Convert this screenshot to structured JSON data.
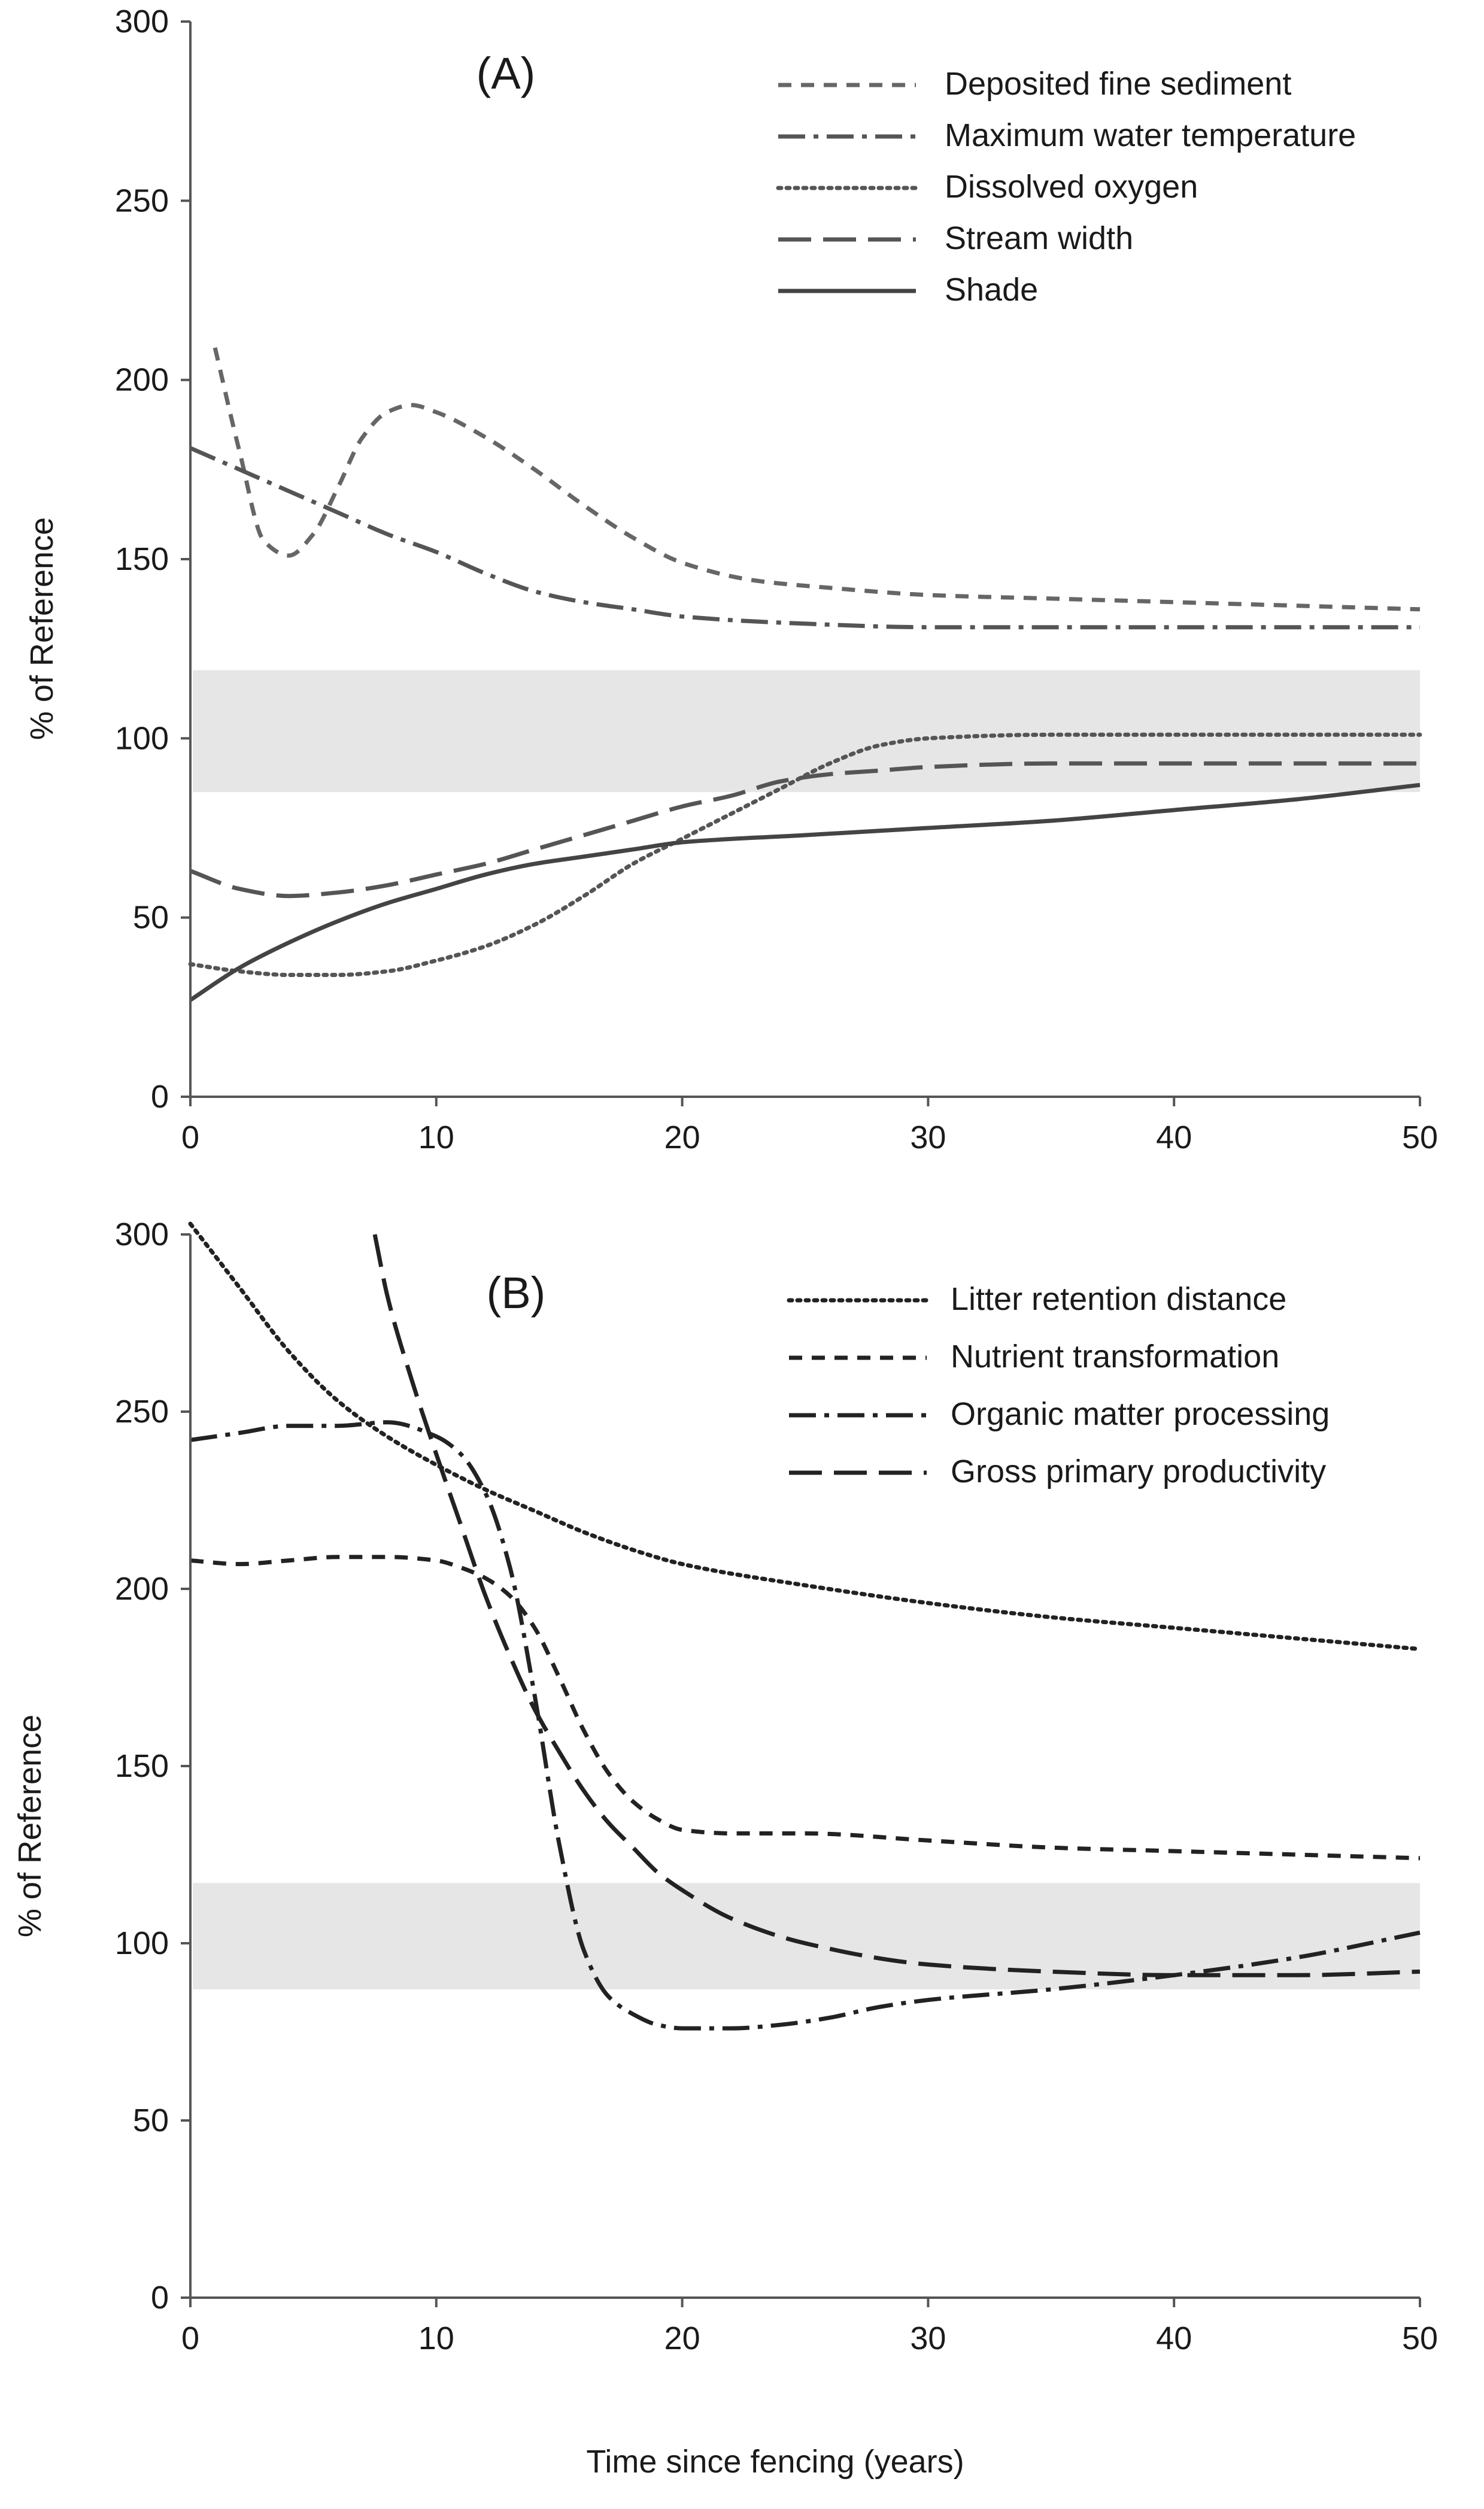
{
  "x_axis_label": "Time since fencing (years)",
  "chart_data": [
    {
      "type": "line",
      "panel_label": "(A)",
      "ylabel": "% of Reference",
      "xlim": [
        0,
        50
      ],
      "ylim": [
        0,
        300
      ],
      "xticks": [
        0,
        10,
        20,
        30,
        40,
        50
      ],
      "yticks": [
        0,
        50,
        100,
        150,
        200,
        250,
        300
      ],
      "grid": false,
      "legend_position": "top-right",
      "reference_band": {
        "y_low": 85,
        "y_high": 119
      },
      "series": [
        {
          "name": "Deposited fine sediment",
          "dash": "short-dash",
          "color": "#666666",
          "x": [
            1,
            2,
            3,
            4,
            5,
            6,
            7,
            8,
            9,
            10,
            12,
            14,
            16,
            18,
            20,
            23,
            26,
            30,
            35,
            40,
            45,
            50
          ],
          "y": [
            209,
            180,
            155,
            151,
            157,
            170,
            184,
            191,
            193,
            191,
            184,
            175,
            165,
            156,
            149,
            144,
            142,
            140,
            139,
            138,
            137,
            136
          ]
        },
        {
          "name": "Maximum water temperature",
          "dash": "dash-dot",
          "color": "#555555",
          "x": [
            0,
            2,
            4,
            6,
            8,
            10,
            12,
            14,
            16,
            18,
            20,
            25,
            30,
            35,
            40,
            45,
            50
          ],
          "y": [
            181,
            175,
            169,
            163,
            157,
            152,
            146,
            141,
            138,
            136,
            134,
            132,
            131,
            131,
            131,
            131,
            131
          ]
        },
        {
          "name": "Dissolved oxygen",
          "dash": "dotted",
          "color": "#555555",
          "x": [
            0,
            2,
            4,
            6,
            8,
            10,
            12,
            14,
            16,
            18,
            20,
            22,
            24,
            26,
            28,
            30,
            35,
            40,
            45,
            50
          ],
          "y": [
            37,
            35,
            34,
            34,
            35,
            38,
            42,
            48,
            56,
            65,
            72,
            79,
            86,
            93,
            98,
            100,
            101,
            101,
            101,
            101
          ]
        },
        {
          "name": "Stream width",
          "dash": "long-dash",
          "color": "#555555",
          "x": [
            0,
            2,
            4,
            6,
            8,
            10,
            12,
            14,
            16,
            18,
            20,
            22,
            24,
            26,
            28,
            30,
            35,
            40,
            45,
            50
          ],
          "y": [
            63,
            58,
            56,
            57,
            59,
            62,
            65,
            69,
            73,
            77,
            81,
            84,
            88,
            90,
            91,
            92,
            93,
            93,
            93,
            93
          ]
        },
        {
          "name": "Shade",
          "dash": "solid",
          "color": "#444444",
          "x": [
            0,
            2,
            4,
            6,
            8,
            10,
            12,
            14,
            16,
            18,
            20,
            25,
            30,
            35,
            40,
            45,
            50
          ],
          "y": [
            27,
            36,
            43,
            49,
            54,
            58,
            62,
            65,
            67,
            69,
            71,
            73,
            75,
            77,
            80,
            83,
            87
          ]
        }
      ]
    },
    {
      "type": "line",
      "panel_label": "(B)",
      "ylabel": "% of Reference",
      "xlim": [
        0,
        50
      ],
      "ylim": [
        0,
        300
      ],
      "xticks": [
        0,
        10,
        20,
        30,
        40,
        50
      ],
      "yticks": [
        0,
        50,
        100,
        150,
        200,
        250,
        300
      ],
      "grid": false,
      "legend_position": "top-right",
      "reference_band": {
        "y_low": 87,
        "y_high": 117
      },
      "series": [
        {
          "name": "Litter retention distance",
          "dash": "dotted",
          "color": "#222222",
          "x": [
            0,
            2,
            4,
            6,
            8,
            10,
            12,
            14,
            16,
            18,
            20,
            25,
            30,
            35,
            40,
            45,
            50
          ],
          "y": [
            303,
            285,
            267,
            253,
            243,
            235,
            228,
            222,
            216,
            211,
            207,
            201,
            196,
            192,
            189,
            186,
            183
          ]
        },
        {
          "name": "Nutrient transformation",
          "dash": "short-dash",
          "color": "#222222",
          "x": [
            0,
            2,
            4,
            6,
            8,
            10,
            11,
            12,
            13,
            14,
            15,
            16,
            17,
            18,
            19,
            20,
            22,
            25,
            30,
            35,
            40,
            45,
            50
          ],
          "y": [
            208,
            207,
            208,
            209,
            209,
            208,
            206,
            203,
            198,
            189,
            175,
            160,
            148,
            140,
            135,
            132,
            131,
            131,
            129,
            127,
            126,
            125,
            124
          ]
        },
        {
          "name": "Organic matter processing",
          "dash": "dash-dot",
          "color": "#222222",
          "x": [
            0,
            2,
            4,
            6,
            8,
            10,
            11,
            12,
            13,
            14,
            15,
            16,
            17,
            18,
            19,
            20,
            22,
            24,
            26,
            28,
            30,
            35,
            40,
            45,
            50
          ],
          "y": [
            242,
            244,
            246,
            246,
            247,
            243,
            238,
            227,
            206,
            170,
            128,
            98,
            85,
            80,
            77,
            76,
            76,
            77,
            79,
            82,
            84,
            87,
            91,
            96,
            103
          ]
        },
        {
          "name": "Gross primary productivity",
          "dash": "long-dash",
          "color": "#222222",
          "x": [
            7.5,
            8,
            9,
            10,
            11,
            12,
            13,
            14,
            15,
            16,
            17,
            18,
            19,
            20,
            22,
            25,
            30,
            35,
            40,
            45,
            50
          ],
          "y": [
            300,
            283,
            259,
            238,
            218,
            198,
            181,
            166,
            154,
            143,
            134,
            127,
            120,
            115,
            107,
            100,
            94,
            92,
            91,
            91,
            92
          ]
        }
      ]
    }
  ]
}
